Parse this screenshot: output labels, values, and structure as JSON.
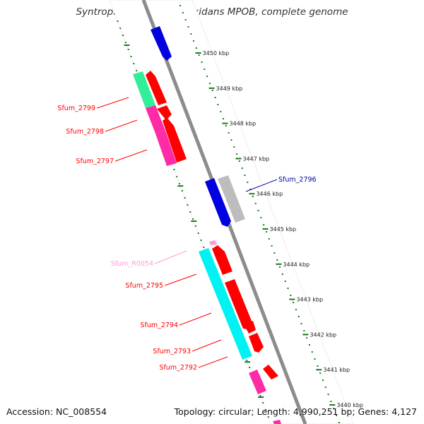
{
  "title": "Syntrophobacter fumaroxidans MPOB, complete genome",
  "footer": {
    "accession": "Accession: NC_008554",
    "topology": "Topology: circular; Length: 4,990,251 bp; Genes: 4,127"
  },
  "colors": {
    "backbone": "#8c8c8c",
    "ticks": "#1a7a1a",
    "blue": "#0000e0",
    "red": "#ff0000",
    "green": "#33ee99",
    "magenta": "#ff2aa5",
    "grey": "#bdbdbd",
    "cyan": "#00f2f2",
    "pink": "#ff9cd2",
    "navy": "#0000aa"
  },
  "scale": {
    "ticks": [
      {
        "label": "3450 kbp"
      },
      {
        "label": "3449 kbp"
      },
      {
        "label": "3448 kbp"
      },
      {
        "label": "3447 kbp"
      },
      {
        "label": "3446 kbp"
      },
      {
        "label": "3445 kbp"
      },
      {
        "label": "3444 kbp"
      },
      {
        "label": "3443 kbp"
      },
      {
        "label": "3442 kbp"
      },
      {
        "label": "3441 kbp"
      },
      {
        "label": "3440 kbp"
      }
    ]
  },
  "gene_labels": [
    {
      "label": "Sfum_2799",
      "color": "red"
    },
    {
      "label": "Sfum_2798",
      "color": "red"
    },
    {
      "label": "Sfum_2797",
      "color": "red"
    },
    {
      "label": "Sfum_2796",
      "color": "navy"
    },
    {
      "label": "Sfum_R0054",
      "color": "pink"
    },
    {
      "label": "Sfum_2795",
      "color": "red"
    },
    {
      "label": "Sfum_2794",
      "color": "red"
    },
    {
      "label": "Sfum_2793",
      "color": "red"
    },
    {
      "label": "Sfum_2792",
      "color": "red"
    }
  ]
}
